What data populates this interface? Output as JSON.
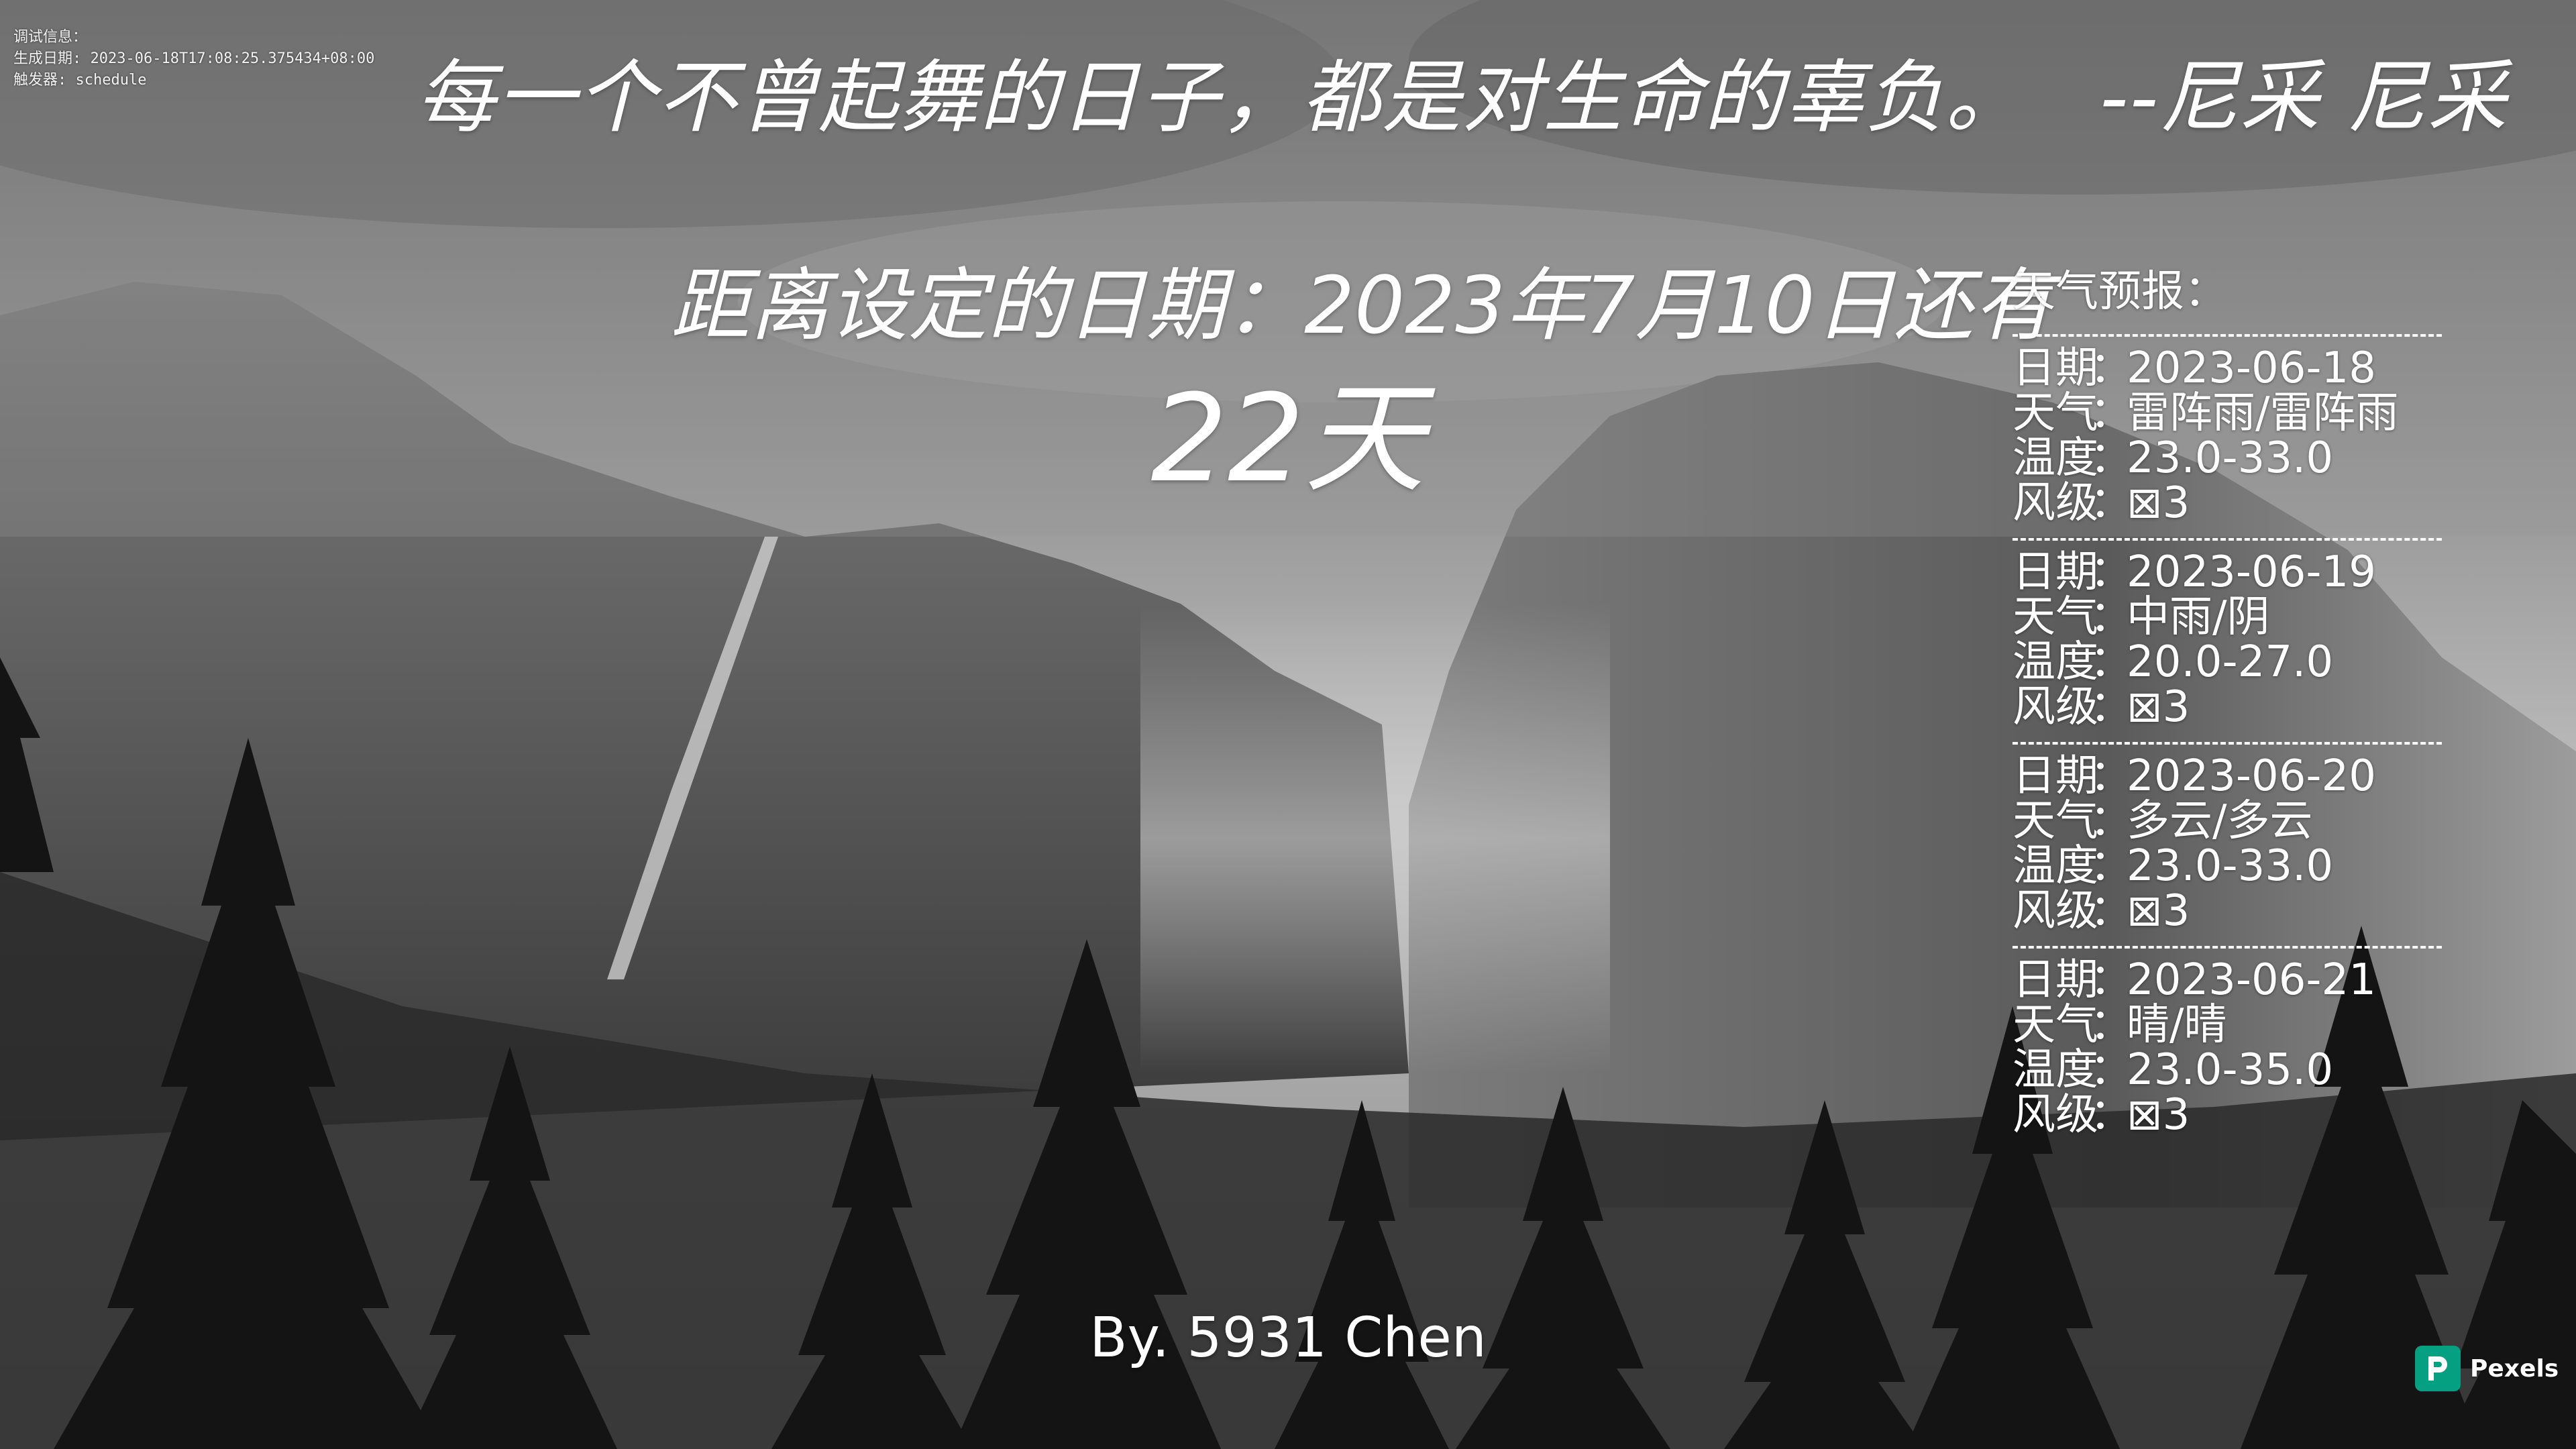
{
  "debug": {
    "title": "调试信息：",
    "generated": "生成日期: 2023-06-18T17:08:25.375434+08:00",
    "trigger": "触发器: schedule"
  },
  "quote": {
    "text": "每一个不曾起舞的日子，都是对生命的辜负。",
    "author": "--尼采 尼采"
  },
  "countdown": {
    "label": "距离设定的日期：2023年7月10日还有",
    "value": "22天"
  },
  "weather": {
    "title": "天气预报：",
    "labels": {
      "date": "日期",
      "weather": "天气",
      "temp": "温度",
      "wind": "风级",
      "sep": "："
    },
    "days": [
      {
        "date": "2023-06-18",
        "weather": "雷阵雨/雷阵雨",
        "temp": "23.0-33.0",
        "wind": "⊠3"
      },
      {
        "date": "2023-06-19",
        "weather": "中雨/阴",
        "temp": "20.0-27.0",
        "wind": "⊠3"
      },
      {
        "date": "2023-06-20",
        "weather": "多云/多云",
        "temp": "23.0-33.0",
        "wind": "⊠3"
      },
      {
        "date": "2023-06-21",
        "weather": "晴/晴",
        "temp": "23.0-35.0",
        "wind": "⊠3"
      }
    ]
  },
  "byline": "By. 5931 Chen",
  "pexels": {
    "label": "Pexels"
  },
  "colors": {
    "pexels_green": "#05a081",
    "text": "#ffffff"
  }
}
